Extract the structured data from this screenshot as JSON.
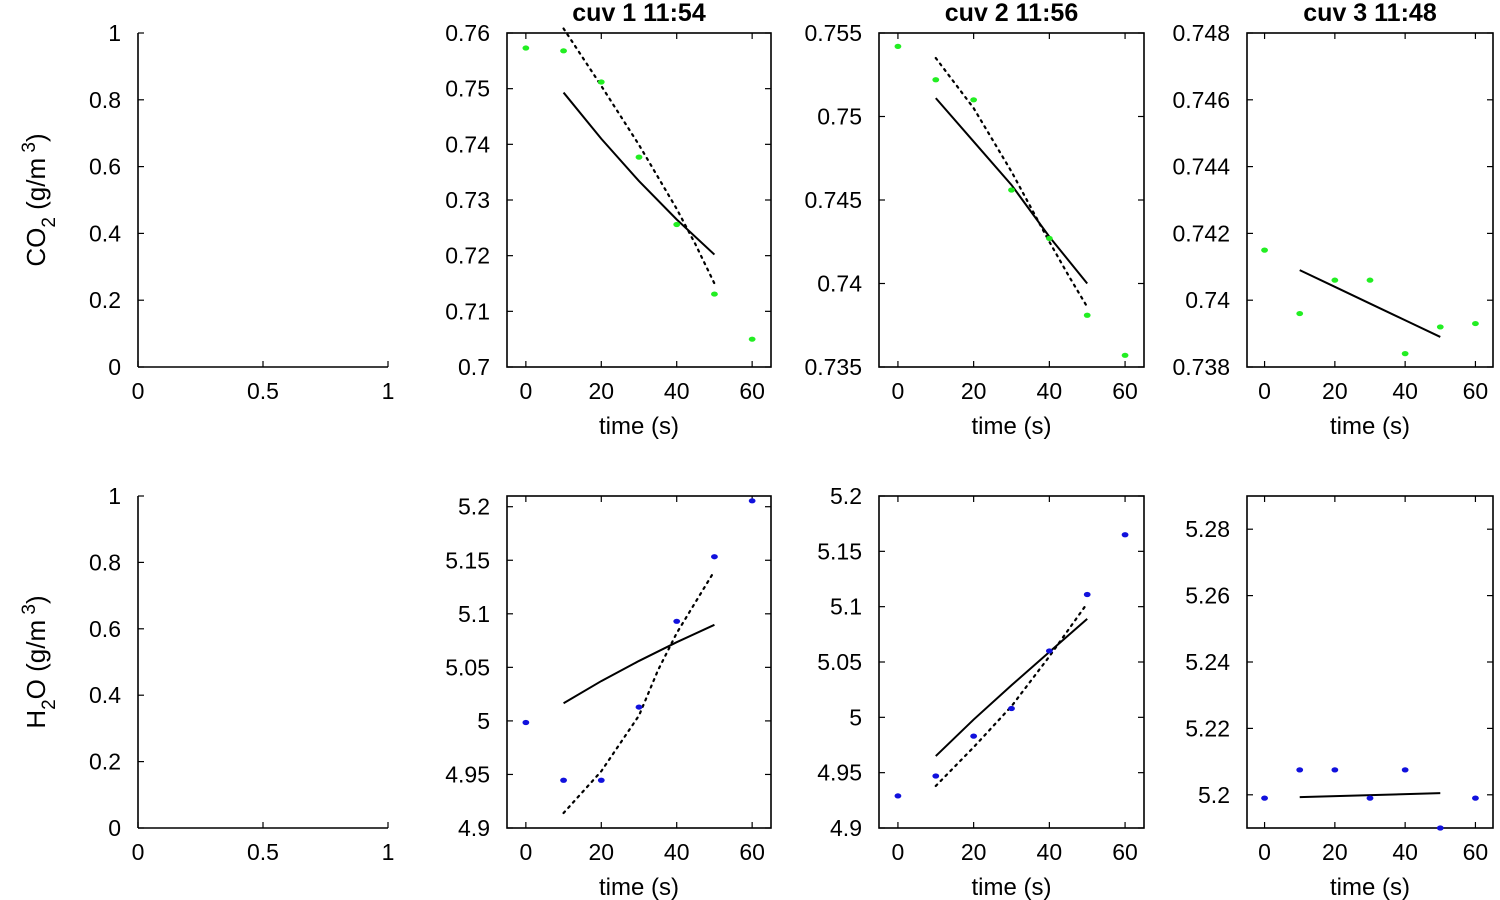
{
  "colors": {
    "co2_points": "#22ee22",
    "h2o_points": "#1111dd",
    "line": "#000000"
  },
  "row_labels": {
    "co2": {
      "main": "CO",
      "sub": "2",
      "unit": " (g/m",
      "sup": " 3",
      "close": ")"
    },
    "h2o": {
      "pre": "H",
      "sub": "2",
      "main": "O",
      "unit": " (g/m",
      "sup": " 3",
      "close": ")"
    }
  },
  "chart_data": [
    {
      "type": "scatter",
      "row": "co2",
      "col": 0,
      "title": "",
      "xlabel": "",
      "xlim": [
        0,
        1
      ],
      "ylim": [
        0,
        1
      ],
      "xticks": [
        0,
        0.5,
        1
      ],
      "xticklabels": [
        "0",
        "0.5",
        "1"
      ],
      "yticks": [
        0,
        0.2,
        0.4,
        0.6,
        0.8,
        1
      ],
      "yticklabels": [
        "0",
        "0.2",
        "0.4",
        "0.6",
        "0.8",
        "1"
      ],
      "box": false,
      "points": [],
      "fit": [],
      "dotted": []
    },
    {
      "type": "scatter",
      "row": "co2",
      "col": 1,
      "title": "cuv 1 11:54",
      "xlabel": "time (s)",
      "xlim": [
        -5,
        65
      ],
      "ylim": [
        0.7,
        0.76
      ],
      "xticks": [
        0,
        20,
        40,
        60
      ],
      "xticklabels": [
        "0",
        "20",
        "40",
        "60"
      ],
      "yticks": [
        0.7,
        0.71,
        0.72,
        0.73,
        0.74,
        0.75,
        0.76
      ],
      "yticklabels": [
        "0.7",
        "0.71",
        "0.72",
        "0.73",
        "0.74",
        "0.75",
        "0.76"
      ],
      "box": true,
      "points": [
        [
          0,
          0.7573
        ],
        [
          10,
          0.7568
        ],
        [
          20,
          0.7512
        ],
        [
          30,
          0.7377
        ],
        [
          40,
          0.7256
        ],
        [
          50,
          0.7131
        ],
        [
          60,
          0.705
        ]
      ],
      "fit": [
        [
          10,
          0.7493
        ],
        [
          20,
          0.741
        ],
        [
          30,
          0.7334
        ],
        [
          40,
          0.7265
        ],
        [
          50,
          0.7202
        ]
      ],
      "dotted": [
        [
          10,
          0.7608
        ],
        [
          20,
          0.7505
        ],
        [
          30,
          0.7399
        ],
        [
          40,
          0.7284
        ],
        [
          45,
          0.722
        ],
        [
          50,
          0.715
        ]
      ]
    },
    {
      "type": "scatter",
      "row": "co2",
      "col": 2,
      "title": "cuv 2 11:56",
      "xlabel": "time (s)",
      "xlim": [
        -5,
        65
      ],
      "ylim": [
        0.735,
        0.755
      ],
      "xticks": [
        0,
        20,
        40,
        60
      ],
      "xticklabels": [
        "0",
        "20",
        "40",
        "60"
      ],
      "yticks": [
        0.735,
        0.74,
        0.745,
        0.75,
        0.755
      ],
      "yticklabels": [
        "0.735",
        "0.74",
        "0.745",
        "0.75",
        "0.755"
      ],
      "box": true,
      "points": [
        [
          0,
          0.7542
        ],
        [
          10,
          0.7522
        ],
        [
          20,
          0.751
        ],
        [
          30,
          0.7456
        ],
        [
          40,
          0.7427
        ],
        [
          50,
          0.7381
        ],
        [
          60,
          0.7357
        ]
      ],
      "fit": [
        [
          10,
          0.7511
        ],
        [
          20,
          0.7485
        ],
        [
          30,
          0.7459
        ],
        [
          40,
          0.7428
        ],
        [
          50,
          0.74
        ]
      ],
      "dotted": [
        [
          10,
          0.7535
        ],
        [
          20,
          0.7505
        ],
        [
          30,
          0.7467
        ],
        [
          40,
          0.7425
        ],
        [
          45,
          0.7405
        ],
        [
          50,
          0.7386
        ]
      ]
    },
    {
      "type": "scatter",
      "row": "co2",
      "col": 3,
      "title": "cuv 3 11:48",
      "xlabel": "time (s)",
      "xlim": [
        -5,
        65
      ],
      "ylim": [
        0.738,
        0.748
      ],
      "xticks": [
        0,
        20,
        40,
        60
      ],
      "xticklabels": [
        "0",
        "20",
        "40",
        "60"
      ],
      "yticks": [
        0.738,
        0.74,
        0.742,
        0.744,
        0.746,
        0.748
      ],
      "yticklabels": [
        "0.738",
        "0.74",
        "0.742",
        "0.744",
        "0.746",
        "0.748"
      ],
      "box": true,
      "points": [
        [
          0,
          0.7415
        ],
        [
          10,
          0.7396
        ],
        [
          20,
          0.7406
        ],
        [
          30,
          0.7406
        ],
        [
          40,
          0.7384
        ],
        [
          50,
          0.7392
        ],
        [
          60,
          0.7393
        ]
      ],
      "fit": [
        [
          10,
          0.7409
        ],
        [
          20,
          0.7404
        ],
        [
          30,
          0.7399
        ],
        [
          40,
          0.7394
        ],
        [
          50,
          0.7389
        ]
      ],
      "dotted": []
    },
    {
      "type": "scatter",
      "row": "h2o",
      "col": 0,
      "title": "",
      "xlabel": "",
      "xlim": [
        0,
        1
      ],
      "ylim": [
        0,
        1
      ],
      "xticks": [
        0,
        0.5,
        1
      ],
      "xticklabels": [
        "0",
        "0.5",
        "1"
      ],
      "yticks": [
        0,
        0.2,
        0.4,
        0.6,
        0.8,
        1
      ],
      "yticklabels": [
        "0",
        "0.2",
        "0.4",
        "0.6",
        "0.8",
        "1"
      ],
      "box": false,
      "points": [],
      "fit": [],
      "dotted": []
    },
    {
      "type": "scatter",
      "row": "h2o",
      "col": 1,
      "title": "",
      "xlabel": "time (s)",
      "xlim": [
        -5,
        65
      ],
      "ylim": [
        4.9,
        5.21
      ],
      "xticks": [
        0,
        20,
        40,
        60
      ],
      "xticklabels": [
        "0",
        "20",
        "40",
        "60"
      ],
      "yticks": [
        4.9,
        4.95,
        5,
        5.05,
        5.1,
        5.15,
        5.2
      ],
      "yticklabels": [
        "4.9",
        "4.95",
        "5",
        "5.05",
        "5.1",
        "5.15",
        "5.2"
      ],
      "box": true,
      "points": [
        [
          0,
          4.9985
        ],
        [
          10,
          4.9446
        ],
        [
          20,
          4.9446
        ],
        [
          30,
          5.0129
        ],
        [
          40,
          5.093
        ],
        [
          50,
          5.1533
        ],
        [
          60,
          5.2055
        ]
      ],
      "fit": [
        [
          10,
          5.0165
        ],
        [
          20,
          5.0372
        ],
        [
          30,
          5.056
        ],
        [
          40,
          5.0735
        ],
        [
          50,
          5.0897
        ]
      ],
      "dotted": [
        [
          10,
          4.914
        ],
        [
          20,
          4.953
        ],
        [
          30,
          5.005
        ],
        [
          35,
          5.047
        ],
        [
          40,
          5.082
        ],
        [
          50,
          5.14
        ]
      ]
    },
    {
      "type": "scatter",
      "row": "h2o",
      "col": 2,
      "title": "",
      "xlabel": "time (s)",
      "xlim": [
        -5,
        65
      ],
      "ylim": [
        4.9,
        5.2
      ],
      "xticks": [
        0,
        20,
        40,
        60
      ],
      "xticklabels": [
        "0",
        "20",
        "40",
        "60"
      ],
      "yticks": [
        4.9,
        4.95,
        5,
        5.05,
        5.1,
        5.15,
        5.2
      ],
      "yticklabels": [
        "4.9",
        "4.95",
        "5",
        "5.05",
        "5.1",
        "5.15",
        "5.2"
      ],
      "box": true,
      "points": [
        [
          0,
          4.929
        ],
        [
          10,
          4.947
        ],
        [
          20,
          4.983
        ],
        [
          30,
          5.008
        ],
        [
          40,
          5.06
        ],
        [
          50,
          5.111
        ],
        [
          60,
          5.165
        ]
      ],
      "fit": [
        [
          10,
          4.965
        ],
        [
          20,
          4.998
        ],
        [
          30,
          5.029
        ],
        [
          40,
          5.059
        ],
        [
          50,
          5.089
        ]
      ],
      "dotted": [
        [
          10,
          4.938
        ],
        [
          20,
          4.973
        ],
        [
          30,
          5.01
        ],
        [
          40,
          5.055
        ],
        [
          50,
          5.103
        ]
      ]
    },
    {
      "type": "scatter",
      "row": "h2o",
      "col": 3,
      "title": "",
      "xlabel": "time (s)",
      "xlim": [
        -5,
        65
      ],
      "ylim": [
        5.19,
        5.29
      ],
      "xticks": [
        0,
        20,
        40,
        60
      ],
      "xticklabels": [
        "0",
        "20",
        "40",
        "60"
      ],
      "yticks": [
        5.2,
        5.22,
        5.24,
        5.26,
        5.28
      ],
      "yticklabels": [
        "5.2",
        "5.22",
        "5.24",
        "5.26",
        "5.28"
      ],
      "box": true,
      "points": [
        [
          0,
          5.199
        ],
        [
          10,
          5.2075
        ],
        [
          20,
          5.2075
        ],
        [
          30,
          5.199
        ],
        [
          40,
          5.2075
        ],
        [
          50,
          5.19
        ],
        [
          60,
          5.199
        ]
      ],
      "fit": [
        [
          10,
          5.1993
        ],
        [
          50,
          5.2005
        ]
      ],
      "dotted": []
    }
  ]
}
